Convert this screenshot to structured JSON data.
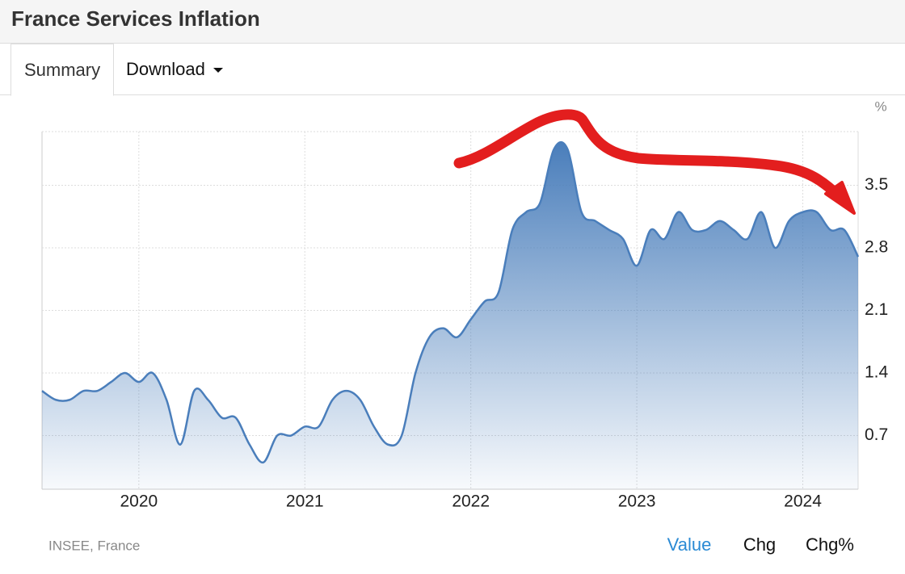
{
  "header": {
    "title": "France Services Inflation"
  },
  "tabs": [
    "Summary",
    "Download"
  ],
  "chart_data": {
    "type": "area",
    "unit": "%",
    "x": [
      "2019-06",
      "2019-07",
      "2019-08",
      "2019-09",
      "2019-10",
      "2019-11",
      "2019-12",
      "2020-01",
      "2020-02",
      "2020-03",
      "2020-04",
      "2020-05",
      "2020-06",
      "2020-07",
      "2020-08",
      "2020-09",
      "2020-10",
      "2020-11",
      "2020-12",
      "2021-01",
      "2021-02",
      "2021-03",
      "2021-04",
      "2021-05",
      "2021-06",
      "2021-07",
      "2021-08",
      "2021-09",
      "2021-10",
      "2021-11",
      "2021-12",
      "2022-01",
      "2022-02",
      "2022-03",
      "2022-04",
      "2022-05",
      "2022-06",
      "2022-07",
      "2022-08",
      "2022-09",
      "2022-10",
      "2022-11",
      "2022-12",
      "2023-01",
      "2023-02",
      "2023-03",
      "2023-04",
      "2023-05",
      "2023-06",
      "2023-07",
      "2023-08",
      "2023-09",
      "2023-10",
      "2023-11",
      "2023-12",
      "2024-01",
      "2024-02",
      "2024-03",
      "2024-04",
      "2024-05"
    ],
    "values": [
      1.2,
      1.1,
      1.1,
      1.2,
      1.2,
      1.3,
      1.4,
      1.3,
      1.4,
      1.1,
      0.6,
      1.2,
      1.1,
      0.9,
      0.9,
      0.6,
      0.4,
      0.7,
      0.7,
      0.8,
      0.8,
      1.1,
      1.2,
      1.1,
      0.8,
      0.6,
      0.7,
      1.4,
      1.8,
      1.9,
      1.8,
      2.0,
      2.2,
      2.3,
      3.0,
      3.2,
      3.3,
      3.9,
      3.9,
      3.2,
      3.1,
      3.0,
      2.9,
      2.6,
      3.0,
      2.9,
      3.2,
      3.0,
      3.0,
      3.1,
      3.0,
      2.9,
      3.2,
      2.8,
      3.1,
      3.2,
      3.2,
      3.0,
      3.0,
      2.7
    ],
    "color": "#4a7ebb",
    "xlim": [
      "2019-06",
      "2024-05"
    ],
    "xticks": [
      2020,
      2021,
      2022,
      2023,
      2024
    ],
    "ylim": [
      0.1,
      4.1
    ],
    "yticks": [
      0.7,
      1.4,
      2.1,
      2.8,
      3.5
    ],
    "grid": true
  },
  "footer": {
    "source": "INSEE, France",
    "buttons": [
      "Value",
      "Chg",
      "Chg%"
    ]
  }
}
